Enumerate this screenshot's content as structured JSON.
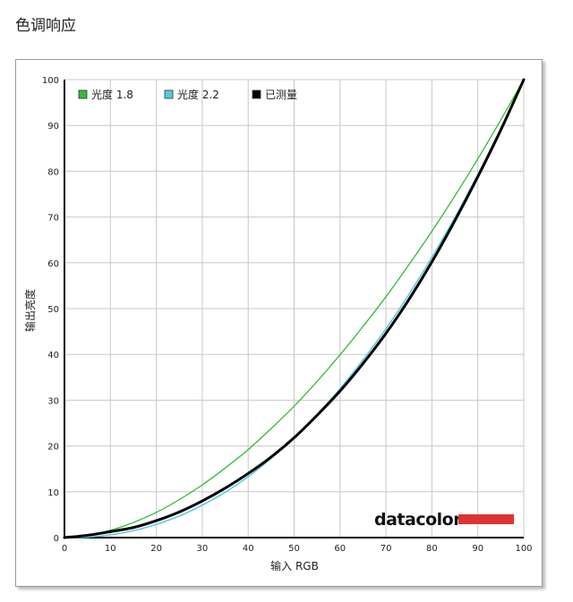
{
  "page": {
    "title": "色调响应"
  },
  "chart_data": {
    "type": "line",
    "title": "",
    "xlabel": "输入 RGB",
    "ylabel": "输出亮度",
    "xlim": [
      0,
      100
    ],
    "ylim": [
      0,
      100
    ],
    "xticks": [
      0,
      10,
      20,
      30,
      40,
      50,
      60,
      70,
      80,
      90,
      100
    ],
    "yticks": [
      0,
      10,
      20,
      30,
      40,
      50,
      60,
      70,
      80,
      90,
      100
    ],
    "grid": true,
    "legend_position": "top-left",
    "series": [
      {
        "name": "光度 1.8",
        "color": "#33bb33",
        "width": 1.3,
        "x": [
          0,
          5,
          10,
          15,
          20,
          25,
          30,
          35,
          40,
          45,
          50,
          55,
          60,
          65,
          70,
          75,
          80,
          85,
          90,
          95,
          100
        ],
        "y": [
          0,
          0.5,
          1.6,
          3.3,
          5.5,
          8.3,
          11.5,
          15.2,
          19.2,
          23.8,
          28.7,
          34.1,
          39.9,
          46.1,
          52.6,
          59.6,
          66.9,
          74.6,
          82.7,
          91.2,
          100
        ]
      },
      {
        "name": "光度 2.2",
        "color": "#55ccdd",
        "width": 1.5,
        "x": [
          0,
          5,
          10,
          15,
          20,
          25,
          30,
          35,
          40,
          45,
          50,
          55,
          60,
          65,
          70,
          75,
          80,
          85,
          90,
          95,
          100
        ],
        "y": [
          0,
          0.1,
          0.6,
          1.5,
          2.9,
          4.7,
          7.1,
          9.9,
          13.3,
          17.3,
          21.8,
          26.9,
          32.5,
          38.8,
          45.6,
          53.1,
          61.2,
          69.9,
          79.3,
          89.3,
          100
        ]
      },
      {
        "name": "已测量",
        "color": "#000000",
        "width": 3,
        "x": [
          0,
          5,
          10,
          15,
          20,
          25,
          30,
          35,
          40,
          45,
          50,
          55,
          60,
          65,
          70,
          75,
          80,
          85,
          90,
          95,
          100
        ],
        "y": [
          0,
          0.5,
          1.3,
          2.2,
          3.7,
          5.6,
          8.0,
          10.8,
          14.0,
          17.6,
          21.8,
          26.7,
          32.0,
          38.0,
          44.6,
          52.0,
          60.2,
          69.2,
          78.8,
          89.0,
          100
        ]
      }
    ]
  },
  "logo": {
    "text": "datacolor",
    "bar_color": "#dd3333"
  }
}
